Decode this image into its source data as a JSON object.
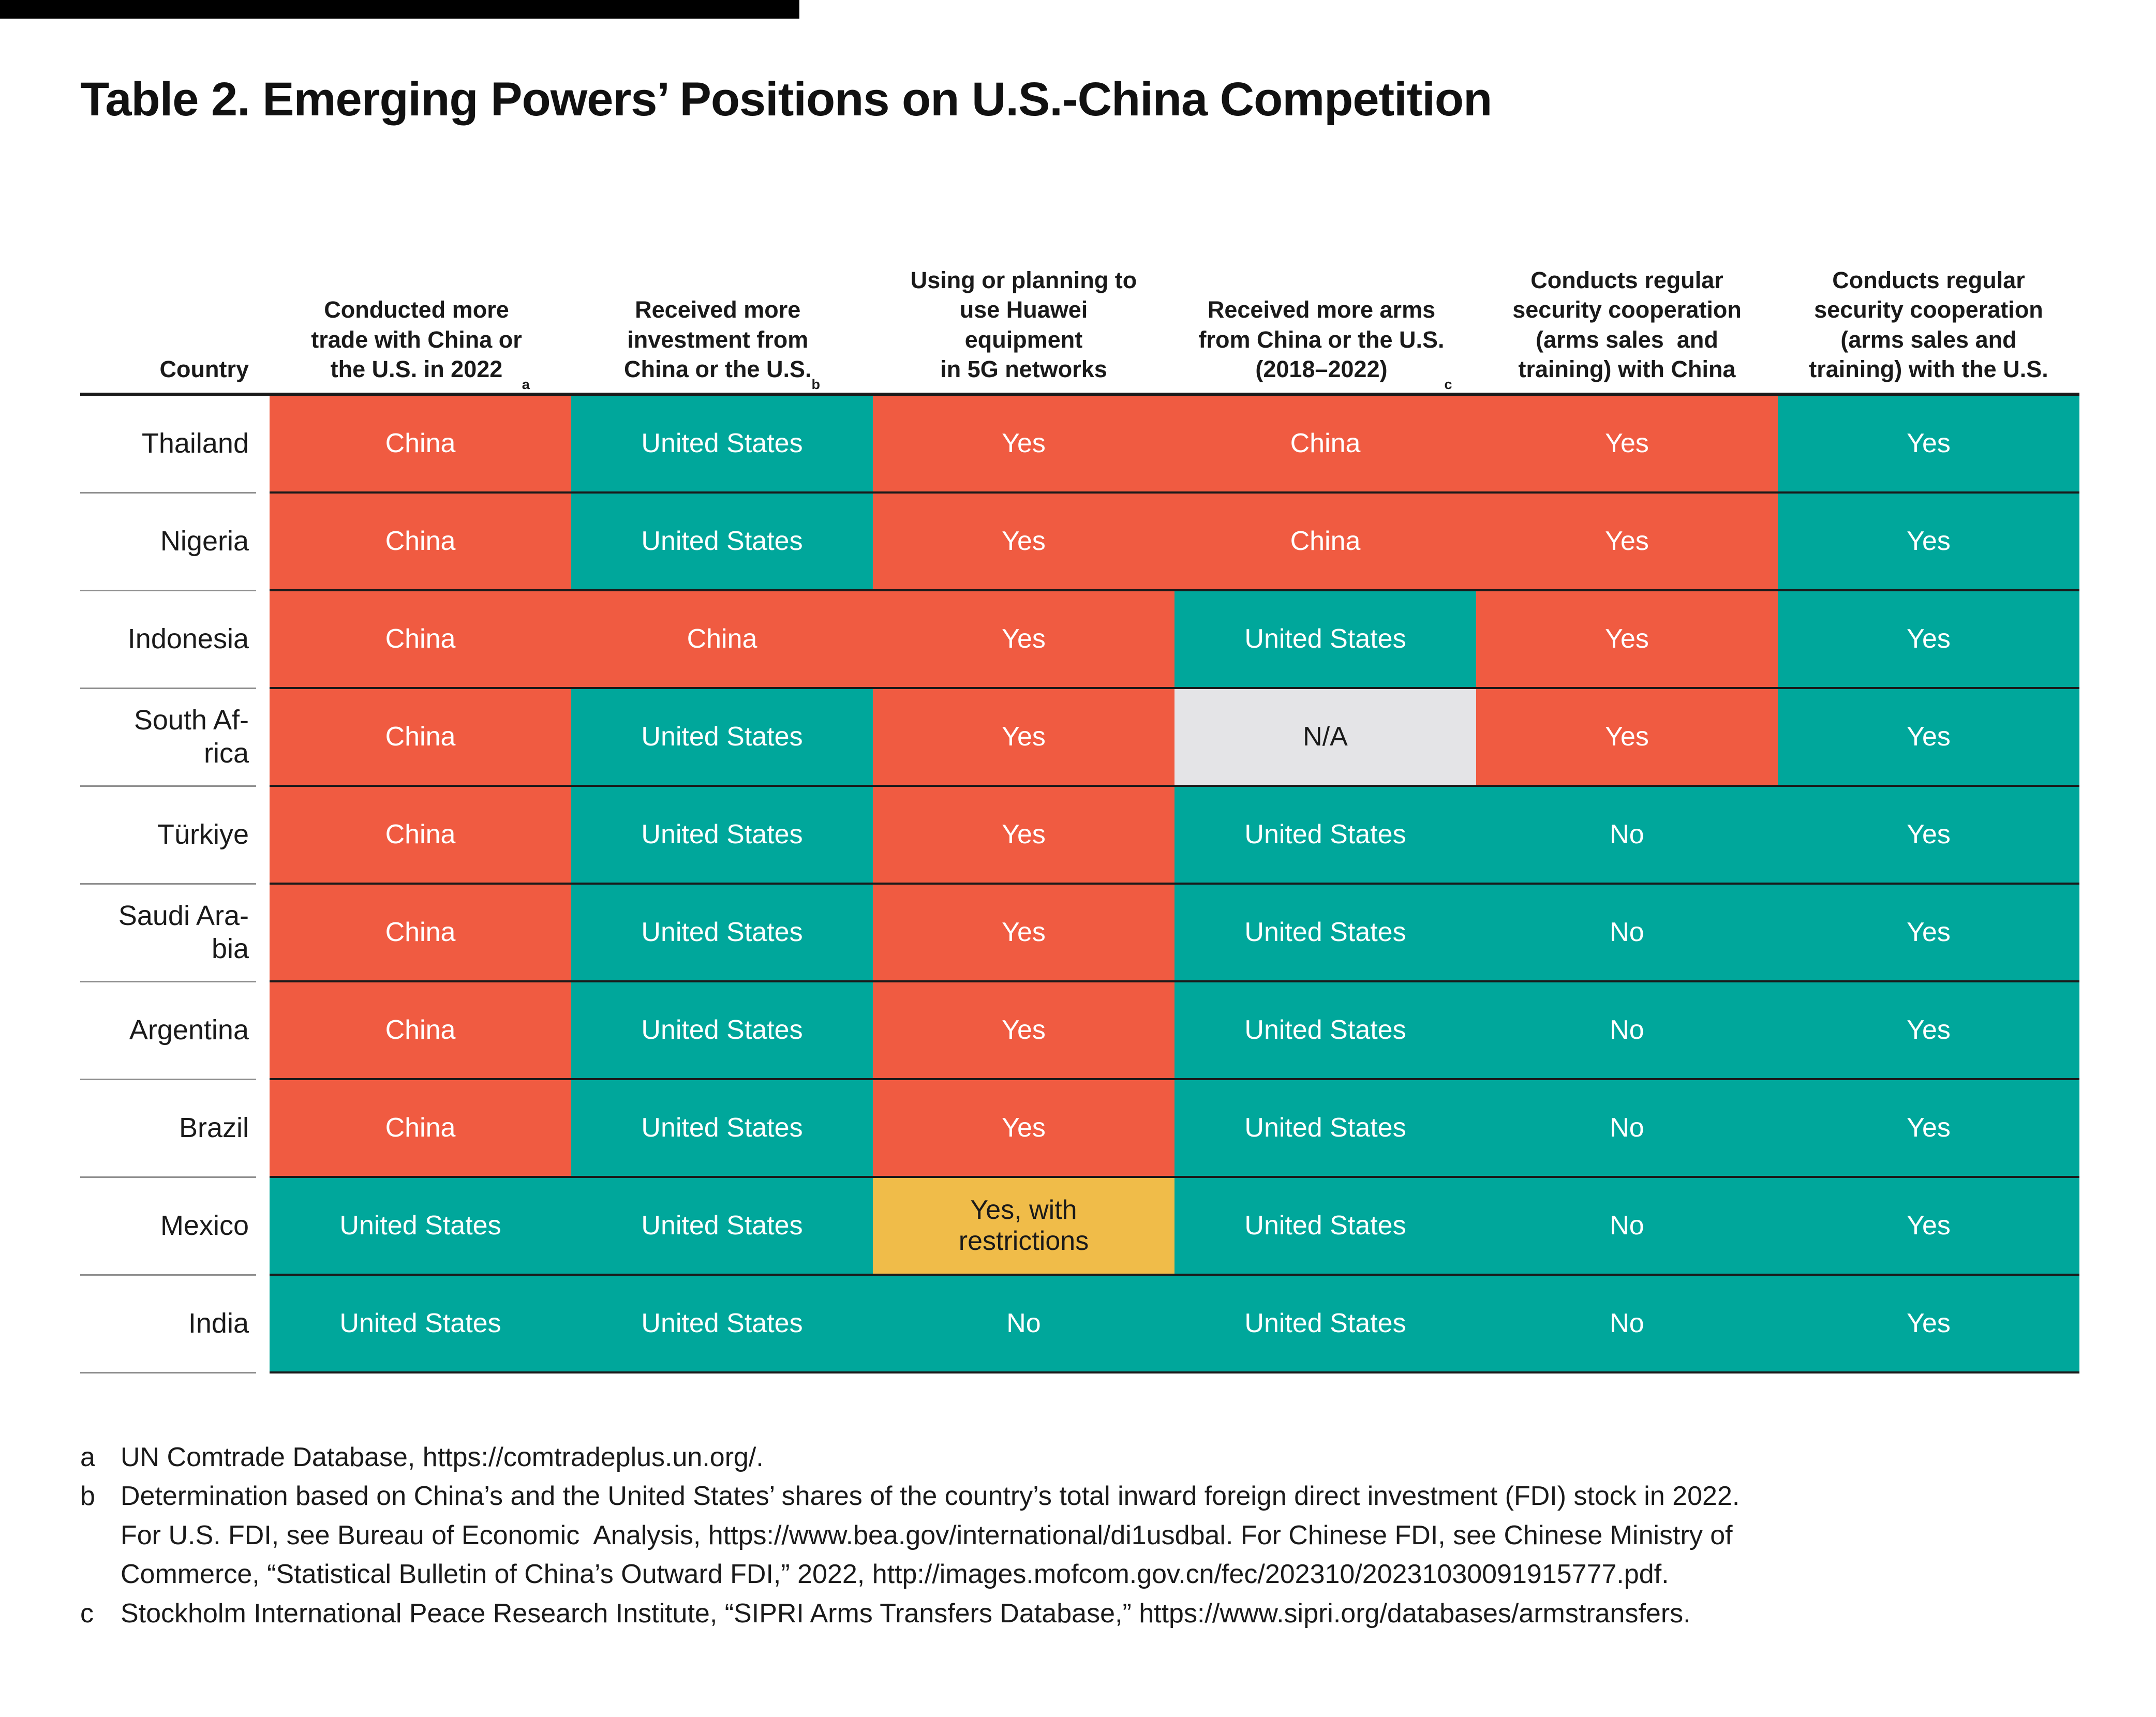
{
  "chart_data": {
    "type": "table",
    "title": "Table 2. Emerging Powers’ Positions on U.S.-China Competition",
    "columns": [
      {
        "id": "country",
        "lines": "Country",
        "sup": ""
      },
      {
        "id": "trade",
        "lines": "Conducted more\ntrade with China or\nthe U.S. in 2022",
        "sup": "a"
      },
      {
        "id": "investment",
        "lines": "Received more\ninvestment from\nChina or the U.S.",
        "sup": "b"
      },
      {
        "id": "huawei",
        "lines": "Using or planning to\nuse Huawei\nequipment\nin 5G networks",
        "sup": ""
      },
      {
        "id": "arms",
        "lines": "Received more arms\nfrom China or the U.S.\n(2018–2022)",
        "sup": "c"
      },
      {
        "id": "sec-china",
        "lines": "Conducts regular\nsecurity cooperation\n(arms sales  and\ntraining) with China",
        "sup": ""
      },
      {
        "id": "sec-us",
        "lines": "Conducts regular\nsecurity cooperation\n(arms sales and\ntraining) with the U.S.",
        "sup": ""
      }
    ],
    "cell_styles": {
      "china": {
        "bg": "#F05B41",
        "fg": "#FFFFFF"
      },
      "us": {
        "bg": "#00A79B",
        "fg": "#FFFFFF"
      },
      "na": {
        "bg": "#E4E4E7",
        "fg": "#1A1A1A"
      },
      "partial": {
        "bg": "#F0BC49",
        "fg": "#1A1A1A"
      }
    },
    "rows": [
      {
        "country": "Thailand",
        "country_display": "Thailand",
        "cells": [
          {
            "t": "China",
            "bg": "china"
          },
          {
            "t": "United States",
            "bg": "us"
          },
          {
            "t": "Yes",
            "bg": "china"
          },
          {
            "t": "China",
            "bg": "china"
          },
          {
            "t": "Yes",
            "bg": "china"
          },
          {
            "t": "Yes",
            "bg": "us"
          }
        ]
      },
      {
        "country": "Nigeria",
        "country_display": "Nigeria",
        "cells": [
          {
            "t": "China",
            "bg": "china"
          },
          {
            "t": "United States",
            "bg": "us"
          },
          {
            "t": "Yes",
            "bg": "china"
          },
          {
            "t": "China",
            "bg": "china"
          },
          {
            "t": "Yes",
            "bg": "china"
          },
          {
            "t": "Yes",
            "bg": "us"
          }
        ]
      },
      {
        "country": "Indonesia",
        "country_display": "Indonesia",
        "cells": [
          {
            "t": "China",
            "bg": "china"
          },
          {
            "t": "China",
            "bg": "china"
          },
          {
            "t": "Yes",
            "bg": "china"
          },
          {
            "t": "United States",
            "bg": "us"
          },
          {
            "t": "Yes",
            "bg": "china"
          },
          {
            "t": "Yes",
            "bg": "us"
          }
        ]
      },
      {
        "country": "South Africa",
        "country_display": "South Af-\nrica",
        "cells": [
          {
            "t": "China",
            "bg": "china"
          },
          {
            "t": "United States",
            "bg": "us"
          },
          {
            "t": "Yes",
            "bg": "china"
          },
          {
            "t": "N/A",
            "bg": "na"
          },
          {
            "t": "Yes",
            "bg": "china"
          },
          {
            "t": "Yes",
            "bg": "us"
          }
        ]
      },
      {
        "country": "Türkiye",
        "country_display": "Türkiye",
        "cells": [
          {
            "t": "China",
            "bg": "china"
          },
          {
            "t": "United States",
            "bg": "us"
          },
          {
            "t": "Yes",
            "bg": "china"
          },
          {
            "t": "United States",
            "bg": "us"
          },
          {
            "t": "No",
            "bg": "us"
          },
          {
            "t": "Yes",
            "bg": "us"
          }
        ]
      },
      {
        "country": "Saudi Arabia",
        "country_display": "Saudi Ara-\nbia",
        "cells": [
          {
            "t": "China",
            "bg": "china"
          },
          {
            "t": "United States",
            "bg": "us"
          },
          {
            "t": "Yes",
            "bg": "china"
          },
          {
            "t": "United States",
            "bg": "us"
          },
          {
            "t": "No",
            "bg": "us"
          },
          {
            "t": "Yes",
            "bg": "us"
          }
        ]
      },
      {
        "country": "Argentina",
        "country_display": "Argentina",
        "cells": [
          {
            "t": "China",
            "bg": "china"
          },
          {
            "t": "United States",
            "bg": "us"
          },
          {
            "t": "Yes",
            "bg": "china"
          },
          {
            "t": "United States",
            "bg": "us"
          },
          {
            "t": "No",
            "bg": "us"
          },
          {
            "t": "Yes",
            "bg": "us"
          }
        ]
      },
      {
        "country": "Brazil",
        "country_display": "Brazil",
        "cells": [
          {
            "t": "China",
            "bg": "china"
          },
          {
            "t": "United States",
            "bg": "us"
          },
          {
            "t": "Yes",
            "bg": "china"
          },
          {
            "t": "United States",
            "bg": "us"
          },
          {
            "t": "No",
            "bg": "us"
          },
          {
            "t": "Yes",
            "bg": "us"
          }
        ]
      },
      {
        "country": "Mexico",
        "country_display": "Mexico",
        "cells": [
          {
            "t": "United States",
            "bg": "us"
          },
          {
            "t": "United States",
            "bg": "us"
          },
          {
            "t": "Yes, with\nrestrictions",
            "bg": "partial"
          },
          {
            "t": "United States",
            "bg": "us"
          },
          {
            "t": "No",
            "bg": "us"
          },
          {
            "t": "Yes",
            "bg": "us"
          }
        ]
      },
      {
        "country": "India",
        "country_display": "India",
        "cells": [
          {
            "t": "United States",
            "bg": "us"
          },
          {
            "t": "United States",
            "bg": "us"
          },
          {
            "t": "No",
            "bg": "us"
          },
          {
            "t": "United States",
            "bg": "us"
          },
          {
            "t": "No",
            "bg": "us"
          },
          {
            "t": "Yes",
            "bg": "us"
          }
        ]
      }
    ]
  },
  "footnotes": [
    {
      "marker": "a",
      "lines": [
        "UN Comtrade Database, https://comtradeplus.un.org/."
      ]
    },
    {
      "marker": "b",
      "lines": [
        "Determination based on China’s and the United States’ shares of the country’s total inward foreign direct investment (FDI) stock in 2022.",
        "For U.S. FDI, see Bureau of Economic  Analysis, https://www.bea.gov/international/di1usdbal. For Chinese FDI, see Chinese Ministry of",
        "Commerce, “Statistical Bulletin of China’s Outward FDI,” 2022, http://images.mofcom.gov.cn/fec/202310/20231030091915777.pdf."
      ]
    },
    {
      "marker": "c",
      "lines": [
        "Stockholm International Peace Research Institute, “SIPRI Arms Transfers Database,” https://www.sipri.org/databases/armstransfers."
      ]
    }
  ]
}
